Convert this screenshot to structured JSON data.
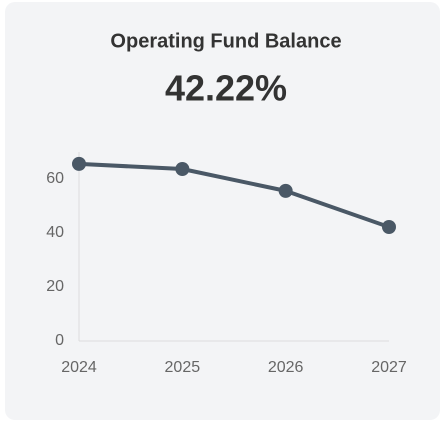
{
  "chart_data": {
    "type": "line",
    "title": "Operating Fund Balance",
    "kpi": "42.22%",
    "categories": [
      "2024",
      "2025",
      "2026",
      "2027"
    ],
    "series": [
      {
        "name": "Operating Fund Balance",
        "color": "#4a5866",
        "values": [
          65.6,
          63.7,
          55.6,
          42.22
        ]
      }
    ],
    "ylim": [
      0,
      70
    ],
    "yticks": [
      0,
      20,
      40,
      60
    ],
    "grid": false
  }
}
